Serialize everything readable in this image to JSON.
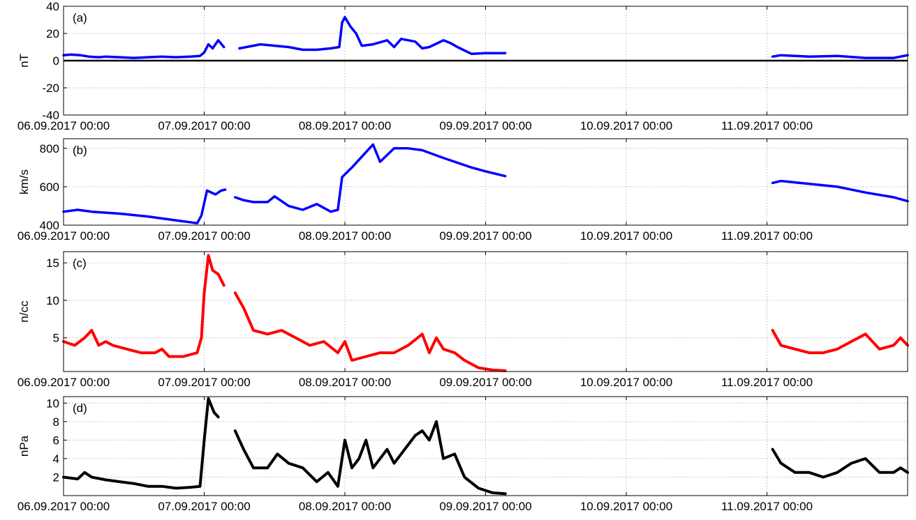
{
  "chart_data": [
    {
      "type": "line",
      "panel_label": "(a)",
      "ylabel": "nT",
      "ylim": [
        -40,
        40
      ],
      "yticks": [
        -40,
        -20,
        0,
        20,
        40
      ],
      "xlim": [
        0,
        6
      ],
      "x_unit": "days since 06.09.2017 00:00",
      "xtick_labels": [
        "06.09.2017 00:00",
        "07.09.2017 00:00",
        "08.09.2017 00:00",
        "09.09.2017 00:00",
        "10.09.2017 00:00",
        "11.09.2017 00:00"
      ],
      "grid": true,
      "zero_line": true,
      "color": "#0000ff",
      "series": [
        {
          "segments": [
            [
              [
                0.0,
                4
              ],
              [
                0.05,
                4.5
              ],
              [
                0.12,
                4
              ],
              [
                0.18,
                3
              ],
              [
                0.25,
                2.5
              ],
              [
                0.3,
                3
              ],
              [
                0.4,
                2.5
              ],
              [
                0.5,
                2
              ],
              [
                0.6,
                2.5
              ],
              [
                0.7,
                3
              ],
              [
                0.8,
                2.5
              ],
              [
                0.9,
                3
              ],
              [
                0.97,
                3.5
              ],
              [
                1.0,
                6
              ],
              [
                1.03,
                12
              ],
              [
                1.06,
                9
              ],
              [
                1.1,
                15
              ],
              [
                1.14,
                10
              ]
            ],
            [
              [
                1.25,
                9
              ],
              [
                1.3,
                10
              ],
              [
                1.4,
                12
              ],
              [
                1.5,
                11
              ],
              [
                1.6,
                10
              ],
              [
                1.7,
                8
              ],
              [
                1.8,
                8
              ],
              [
                1.9,
                9
              ],
              [
                1.96,
                10
              ],
              [
                1.98,
                28
              ],
              [
                2.0,
                32
              ],
              [
                2.04,
                25
              ],
              [
                2.08,
                20
              ],
              [
                2.12,
                11
              ],
              [
                2.2,
                12
              ],
              [
                2.3,
                15
              ],
              [
                2.35,
                10
              ],
              [
                2.4,
                16
              ],
              [
                2.45,
                15
              ],
              [
                2.5,
                14
              ],
              [
                2.55,
                9
              ],
              [
                2.6,
                10
              ],
              [
                2.7,
                15
              ],
              [
                2.75,
                13
              ],
              [
                2.8,
                10
              ],
              [
                2.9,
                5
              ],
              [
                3.0,
                5.5
              ],
              [
                3.14,
                5.5
              ]
            ],
            [
              [
                5.04,
                3
              ],
              [
                5.1,
                4
              ],
              [
                5.3,
                3
              ],
              [
                5.5,
                3.5
              ],
              [
                5.7,
                2
              ],
              [
                5.9,
                2
              ],
              [
                6.0,
                4
              ]
            ]
          ]
        }
      ]
    },
    {
      "type": "line",
      "panel_label": "(b)",
      "ylabel": "km/s",
      "ylim": [
        400,
        850
      ],
      "yticks": [
        400,
        600,
        800
      ],
      "xlim": [
        0,
        6
      ],
      "xtick_labels": [
        "06.09.2017 00:00",
        "07.09.2017 00:00",
        "08.09.2017 00:00",
        "09.09.2017 00:00",
        "10.09.2017 00:00",
        "11.09.2017 00:00"
      ],
      "grid": true,
      "color": "#0000ff",
      "series": [
        {
          "segments": [
            [
              [
                0.0,
                470
              ],
              [
                0.1,
                480
              ],
              [
                0.2,
                470
              ],
              [
                0.4,
                460
              ],
              [
                0.6,
                445
              ],
              [
                0.8,
                425
              ],
              [
                0.95,
                410
              ],
              [
                0.98,
                450
              ],
              [
                1.02,
                580
              ],
              [
                1.08,
                560
              ],
              [
                1.12,
                580
              ],
              [
                1.15,
                585
              ]
            ],
            [
              [
                1.22,
                545
              ],
              [
                1.28,
                530
              ],
              [
                1.35,
                520
              ],
              [
                1.45,
                520
              ],
              [
                1.5,
                550
              ],
              [
                1.6,
                500
              ],
              [
                1.7,
                480
              ],
              [
                1.8,
                510
              ],
              [
                1.9,
                470
              ],
              [
                1.95,
                480
              ],
              [
                1.98,
                650
              ],
              [
                2.05,
                700
              ],
              [
                2.15,
                780
              ],
              [
                2.2,
                820
              ],
              [
                2.25,
                730
              ],
              [
                2.35,
                800
              ],
              [
                2.45,
                800
              ],
              [
                2.55,
                790
              ],
              [
                2.7,
                750
              ],
              [
                2.9,
                700
              ],
              [
                3.0,
                680
              ],
              [
                3.14,
                655
              ]
            ],
            [
              [
                5.04,
                620
              ],
              [
                5.1,
                630
              ],
              [
                5.3,
                615
              ],
              [
                5.5,
                600
              ],
              [
                5.7,
                570
              ],
              [
                5.9,
                545
              ],
              [
                6.0,
                525
              ]
            ]
          ]
        }
      ]
    },
    {
      "type": "line",
      "panel_label": "(c)",
      "ylabel": "n/cc",
      "ylim": [
        0.5,
        16.5
      ],
      "yticks": [
        5,
        10,
        15
      ],
      "xlim": [
        0,
        6
      ],
      "xtick_labels": [
        "06.09.2017 00:00",
        "07.09.2017 00:00",
        "08.09.2017 00:00",
        "09.09.2017 00:00",
        "10.09.2017 00:00",
        "11.09.2017 00:00"
      ],
      "grid": true,
      "color": "#ff0000",
      "series": [
        {
          "segments": [
            [
              [
                0.0,
                4.5
              ],
              [
                0.08,
                4
              ],
              [
                0.15,
                5
              ],
              [
                0.2,
                6
              ],
              [
                0.25,
                4
              ],
              [
                0.3,
                4.5
              ],
              [
                0.35,
                4
              ],
              [
                0.45,
                3.5
              ],
              [
                0.55,
                3
              ],
              [
                0.65,
                3
              ],
              [
                0.7,
                3.5
              ],
              [
                0.75,
                2.5
              ],
              [
                0.85,
                2.5
              ],
              [
                0.95,
                3
              ],
              [
                0.98,
                5
              ],
              [
                1.0,
                11
              ],
              [
                1.03,
                16
              ],
              [
                1.06,
                14
              ],
              [
                1.1,
                13.5
              ],
              [
                1.14,
                12
              ]
            ],
            [
              [
                1.22,
                11
              ],
              [
                1.28,
                9
              ],
              [
                1.35,
                6
              ],
              [
                1.45,
                5.5
              ],
              [
                1.55,
                6
              ],
              [
                1.6,
                5.5
              ],
              [
                1.65,
                5
              ],
              [
                1.75,
                4
              ],
              [
                1.85,
                4.5
              ],
              [
                1.95,
                3
              ],
              [
                2.0,
                4.5
              ],
              [
                2.05,
                2
              ],
              [
                2.15,
                2.5
              ],
              [
                2.25,
                3
              ],
              [
                2.35,
                3
              ],
              [
                2.45,
                4
              ],
              [
                2.55,
                5.5
              ],
              [
                2.6,
                3
              ],
              [
                2.65,
                5
              ],
              [
                2.7,
                3.5
              ],
              [
                2.78,
                3
              ],
              [
                2.85,
                2
              ],
              [
                2.95,
                1
              ],
              [
                3.05,
                0.7
              ],
              [
                3.14,
                0.6
              ]
            ],
            [
              [
                5.04,
                6
              ],
              [
                5.1,
                4
              ],
              [
                5.2,
                3.5
              ],
              [
                5.3,
                3
              ],
              [
                5.4,
                3
              ],
              [
                5.5,
                3.5
              ],
              [
                5.6,
                4.5
              ],
              [
                5.7,
                5.5
              ],
              [
                5.8,
                3.5
              ],
              [
                5.9,
                4
              ],
              [
                5.95,
                5
              ],
              [
                6.0,
                4
              ]
            ]
          ]
        }
      ]
    },
    {
      "type": "line",
      "panel_label": "(d)",
      "ylabel": "nPa",
      "ylim": [
        0,
        10.7
      ],
      "yticks": [
        2,
        4,
        6,
        8,
        10
      ],
      "xlim": [
        0,
        6
      ],
      "xtick_labels": [
        "06.09.2017 00:00",
        "07.09.2017 00:00",
        "08.09.2017 00:00",
        "09.09.2017 00:00",
        "10.09.2017 00:00",
        "11.09.2017 00:00"
      ],
      "grid": true,
      "color": "#000000",
      "series": [
        {
          "segments": [
            [
              [
                0.0,
                2
              ],
              [
                0.1,
                1.8
              ],
              [
                0.15,
                2.5
              ],
              [
                0.2,
                2
              ],
              [
                0.3,
                1.7
              ],
              [
                0.4,
                1.5
              ],
              [
                0.5,
                1.3
              ],
              [
                0.6,
                1
              ],
              [
                0.7,
                1
              ],
              [
                0.8,
                0.8
              ],
              [
                0.9,
                0.9
              ],
              [
                0.97,
                1
              ],
              [
                1.0,
                6
              ],
              [
                1.03,
                10.5
              ],
              [
                1.07,
                9
              ],
              [
                1.1,
                8.5
              ]
            ],
            [
              [
                1.22,
                7
              ],
              [
                1.28,
                5
              ],
              [
                1.35,
                3
              ],
              [
                1.45,
                3
              ],
              [
                1.52,
                4.5
              ],
              [
                1.6,
                3.5
              ],
              [
                1.7,
                3
              ],
              [
                1.8,
                1.5
              ],
              [
                1.88,
                2.5
              ],
              [
                1.95,
                1
              ],
              [
                2.0,
                6
              ],
              [
                2.05,
                3
              ],
              [
                2.1,
                4
              ],
              [
                2.15,
                6
              ],
              [
                2.2,
                3
              ],
              [
                2.25,
                4
              ],
              [
                2.3,
                5
              ],
              [
                2.35,
                3.5
              ],
              [
                2.4,
                4.5
              ],
              [
                2.45,
                5.5
              ],
              [
                2.5,
                6.5
              ],
              [
                2.55,
                7
              ],
              [
                2.6,
                6
              ],
              [
                2.65,
                8
              ],
              [
                2.7,
                4
              ],
              [
                2.78,
                4.5
              ],
              [
                2.85,
                2
              ],
              [
                2.95,
                0.8
              ],
              [
                3.05,
                0.3
              ],
              [
                3.14,
                0.2
              ]
            ],
            [
              [
                5.04,
                5
              ],
              [
                5.1,
                3.5
              ],
              [
                5.2,
                2.5
              ],
              [
                5.3,
                2.5
              ],
              [
                5.4,
                2
              ],
              [
                5.5,
                2.5
              ],
              [
                5.6,
                3.5
              ],
              [
                5.7,
                4
              ],
              [
                5.8,
                2.5
              ],
              [
                5.9,
                2.5
              ],
              [
                5.95,
                3
              ],
              [
                6.0,
                2.5
              ]
            ]
          ]
        }
      ]
    }
  ]
}
